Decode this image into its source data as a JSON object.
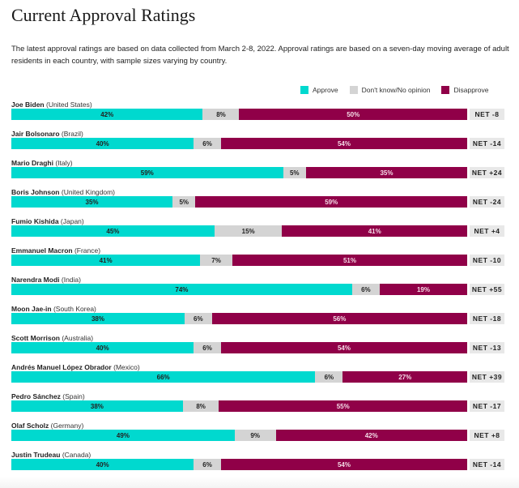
{
  "title": "Current Approval Ratings",
  "description": "The latest approval ratings are based on data collected from March 2-8, 2022. Approval ratings are based on a seven-day moving average of adult residents in each country, with sample sizes varying by country.",
  "colors": {
    "approve": "#00d9cf",
    "dont_know": "#d4d4d4",
    "disapprove": "#900048",
    "net_bg": "#e8e8e8"
  },
  "chart_data": {
    "type": "bar",
    "orientation": "horizontal-stacked-100",
    "title": "Current Approval Ratings",
    "xlabel": "",
    "ylabel": "",
    "xlim": [
      0,
      100
    ],
    "legend": {
      "placement": "top-right",
      "entries": [
        "Approve",
        "Don't know/No opinion",
        "Disapprove"
      ]
    },
    "categories": [
      "Joe Biden (United States)",
      "Jair Bolsonaro (Brazil)",
      "Mario Draghi (Italy)",
      "Boris Johnson (United Kingdom)",
      "Fumio Kishida (Japan)",
      "Emmanuel Macron (France)",
      "Narendra Modi (India)",
      "Moon Jae-in (South Korea)",
      "Scott Morrison (Australia)",
      "Andrés Manuel López Obrador (Mexico)",
      "Pedro Sánchez (Spain)",
      "Olaf Scholz (Germany)",
      "Justin Trudeau (Canada)"
    ],
    "series": [
      {
        "name": "Approve",
        "values": [
          42,
          40,
          59,
          35,
          45,
          41,
          74,
          38,
          40,
          66,
          38,
          49,
          40
        ]
      },
      {
        "name": "Don't know/No opinion",
        "values": [
          8,
          6,
          5,
          5,
          15,
          7,
          6,
          6,
          6,
          6,
          8,
          9,
          6
        ]
      },
      {
        "name": "Disapprove",
        "values": [
          50,
          54,
          35,
          59,
          41,
          51,
          19,
          56,
          54,
          27,
          55,
          42,
          54
        ]
      }
    ],
    "net": [
      "NET -8",
      "NET -14",
      "NET +24",
      "NET -24",
      "NET +4",
      "NET -10",
      "NET +55",
      "NET -18",
      "NET -13",
      "NET +39",
      "NET -17",
      "NET +8",
      "NET -14"
    ],
    "leaders": [
      {
        "name": "Joe Biden",
        "country": "(United States)"
      },
      {
        "name": "Jair Bolsonaro",
        "country": "(Brazil)"
      },
      {
        "name": "Mario Draghi",
        "country": "(Italy)"
      },
      {
        "name": "Boris Johnson",
        "country": "(United Kingdom)"
      },
      {
        "name": "Fumio Kishida",
        "country": "(Japan)"
      },
      {
        "name": "Emmanuel Macron",
        "country": "(France)"
      },
      {
        "name": "Narendra Modi",
        "country": "(India)"
      },
      {
        "name": "Moon Jae-in",
        "country": "(South Korea)"
      },
      {
        "name": "Scott Morrison",
        "country": "(Australia)"
      },
      {
        "name": "Andrés Manuel López Obrador",
        "country": "(Mexico)"
      },
      {
        "name": "Pedro Sánchez",
        "country": "(Spain)"
      },
      {
        "name": "Olaf Scholz",
        "country": "(Germany)"
      },
      {
        "name": "Justin Trudeau",
        "country": "(Canada)"
      }
    ],
    "value_suffix": "%"
  }
}
